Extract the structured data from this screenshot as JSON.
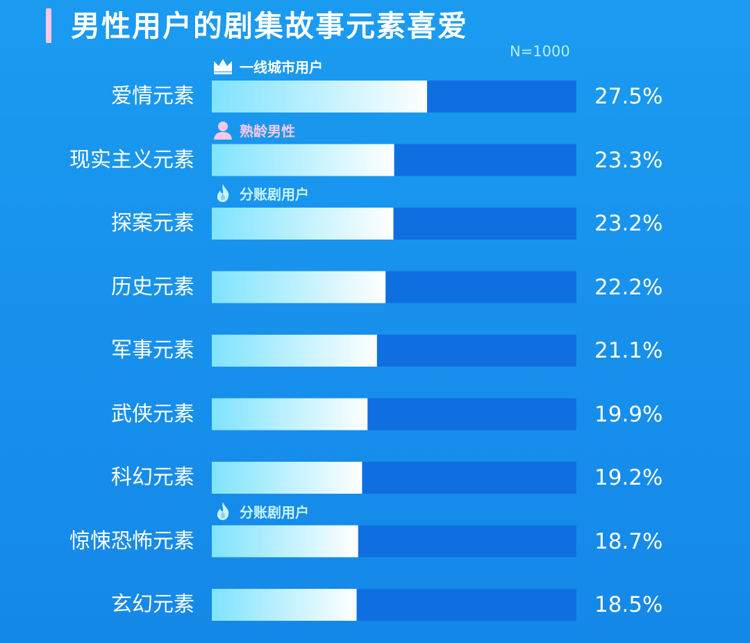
{
  "title": "男性用户的剧集故事元素喜爱",
  "sample_note": "N=1000",
  "colors": {
    "background": "#1790ec",
    "bar_track": "#0f6fe0",
    "bar_fill_start": "#7fe3ff",
    "bar_fill_end": "#ffffff",
    "title_accent": "#f9c8e6",
    "tag_white": "#ffffff",
    "tag_pink": "#f6c8ea",
    "tag_cyan": "#c9f4ff"
  },
  "chart_data": {
    "type": "bar",
    "orientation": "horizontal",
    "categories": [
      "爱情元素",
      "现实主义元素",
      "探案元素",
      "历史元素",
      "军事元素",
      "武侠元素",
      "科幻元素",
      "惊悚恐怖元素",
      "玄幻元素"
    ],
    "values": [
      27.5,
      23.3,
      23.2,
      22.2,
      21.1,
      19.9,
      19.2,
      18.7,
      18.5
    ],
    "value_labels": [
      "27.5%",
      "23.3%",
      "23.2%",
      "22.2%",
      "21.1%",
      "19.9%",
      "19.2%",
      "18.7%",
      "18.5%"
    ],
    "xlim": [
      0,
      50
    ],
    "unit": "%",
    "title": "男性用户的剧集故事元素喜爱",
    "annotation": "N=1000"
  },
  "tags": [
    {
      "row": 0,
      "icon": "crown-icon",
      "text": "一线城市用户",
      "color": "#ffffff"
    },
    {
      "row": 1,
      "icon": "person-icon",
      "text": "熟龄男性",
      "color": "#f6c8ea"
    },
    {
      "row": 2,
      "icon": "flame-icon",
      "text": "分账剧用户",
      "color": "#c9f4ff"
    },
    {
      "row": 7,
      "icon": "flame-icon",
      "text": "分账剧用户",
      "color": "#c9f4ff"
    }
  ]
}
